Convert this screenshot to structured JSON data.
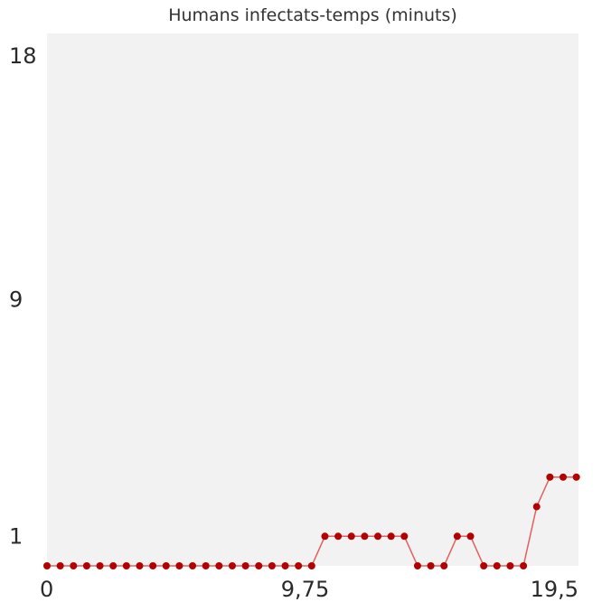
{
  "chart_data": {
    "type": "line",
    "title": "Humans infectats-temps (minuts)",
    "xlabel": "",
    "ylabel": "",
    "xlim": [
      0,
      19.5
    ],
    "ylim": [
      0,
      18
    ],
    "x_ticks": [
      {
        "value": 0,
        "label": "0"
      },
      {
        "value": 9.75,
        "label": "9,75"
      },
      {
        "value": 19.5,
        "label": "19,5"
      }
    ],
    "y_ticks": [
      {
        "value": 1,
        "label": "1"
      },
      {
        "value": 9,
        "label": "9"
      },
      {
        "value": 18,
        "label": "18"
      }
    ],
    "grid": false,
    "series": [
      {
        "color": "#b30000",
        "x": [
          0,
          0.5,
          1.0,
          1.5,
          2.0,
          2.5,
          3.0,
          3.5,
          4.0,
          4.5,
          5.0,
          5.5,
          6.0,
          6.5,
          7.0,
          7.5,
          8.0,
          8.5,
          9.0,
          9.5,
          10.0,
          10.5,
          11.0,
          11.5,
          12.0,
          12.5,
          13.0,
          13.5,
          14.0,
          14.5,
          15.0,
          15.5,
          16.0,
          16.5,
          17.0,
          17.5,
          18.0,
          18.5,
          19.0,
          19.5,
          20.0
        ],
        "values": [
          0,
          0,
          0,
          0,
          0,
          0,
          0,
          0,
          0,
          0,
          0,
          0,
          0,
          0,
          0,
          0,
          0,
          0,
          0,
          0,
          0,
          1,
          1,
          1,
          1,
          1,
          1,
          1,
          0,
          0,
          0,
          1,
          1,
          0,
          0,
          0,
          0,
          2,
          3,
          3,
          3
        ]
      }
    ]
  },
  "colors": {
    "plot_background": "#f2f2f2",
    "line": "#e06060",
    "marker": "#b30000"
  }
}
